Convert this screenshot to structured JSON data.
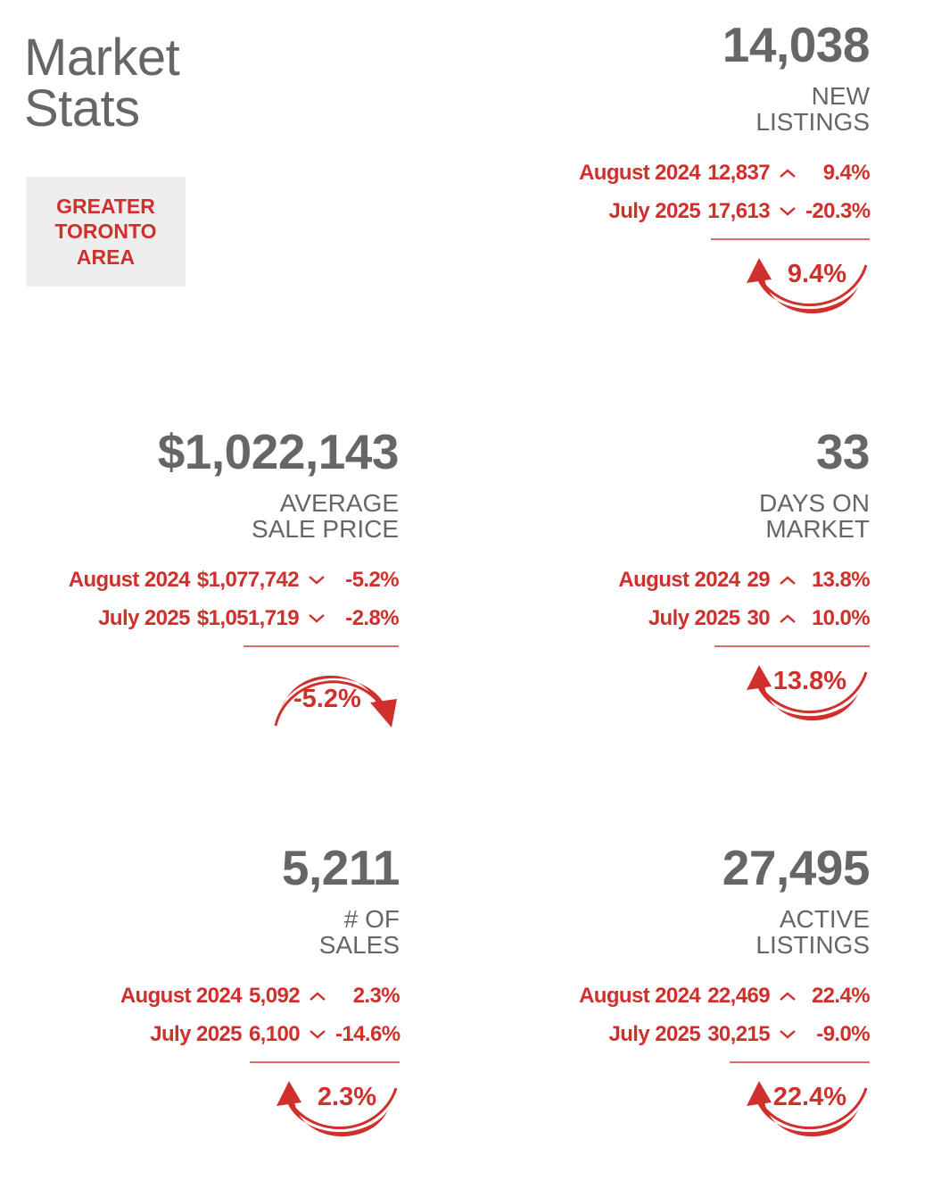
{
  "title_line1": "Market",
  "title_line2": "Stats",
  "region": [
    "GREATER",
    "TORONTO",
    "AREA"
  ],
  "colors": {
    "accent": "#d0302c",
    "text_gray": "#666666",
    "badge_bg": "#eeeeee"
  },
  "cards": [
    {
      "id": "new-listings",
      "value": "14,038",
      "label": [
        "NEW",
        "LISTINGS"
      ],
      "rows": [
        {
          "period": "August 2024",
          "value": "12,837",
          "direction": "up",
          "pct": "9.4%"
        },
        {
          "period": "July 2025",
          "value": "17,613",
          "direction": "down",
          "pct": "-20.3%"
        }
      ],
      "change": "9.4%",
      "change_direction": "up"
    },
    {
      "id": "average-sale-price",
      "value": "$1,022,143",
      "label": [
        "AVERAGE",
        "SALE PRICE"
      ],
      "rows": [
        {
          "period": "August 2024",
          "value": "$1,077,742",
          "direction": "down",
          "pct": "-5.2%"
        },
        {
          "period": "July 2025",
          "value": "$1,051,719",
          "direction": "down",
          "pct": "-2.8%"
        }
      ],
      "change": "-5.2%",
      "change_direction": "down"
    },
    {
      "id": "days-on-market",
      "value": "33",
      "label": [
        "DAYS ON",
        "MARKET"
      ],
      "rows": [
        {
          "period": "August 2024",
          "value": "29",
          "direction": "up",
          "pct": "13.8%"
        },
        {
          "period": "July 2025",
          "value": "30",
          "direction": "up",
          "pct": "10.0%"
        }
      ],
      "change": "13.8%",
      "change_direction": "up"
    },
    {
      "id": "number-of-sales",
      "value": "5,211",
      "label": [
        "# OF",
        "SALES"
      ],
      "rows": [
        {
          "period": "August 2024",
          "value": "5,092",
          "direction": "up",
          "pct": "2.3%"
        },
        {
          "period": "July 2025",
          "value": "6,100",
          "direction": "down",
          "pct": "-14.6%"
        }
      ],
      "change": "2.3%",
      "change_direction": "up"
    },
    {
      "id": "active-listings",
      "value": "27,495",
      "label": [
        "ACTIVE",
        "LISTINGS"
      ],
      "rows": [
        {
          "period": "August 2024",
          "value": "22,469",
          "direction": "up",
          "pct": "22.4%"
        },
        {
          "period": "July 2025",
          "value": "30,215",
          "direction": "down",
          "pct": "-9.0%"
        }
      ],
      "change": "22.4%",
      "change_direction": "up"
    }
  ]
}
